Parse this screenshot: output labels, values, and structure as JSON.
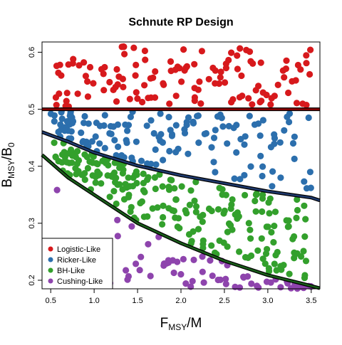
{
  "chart_data": {
    "type": "scatter",
    "title": "Schnute RP Design",
    "xlabel": {
      "main": "F",
      "sub": "MSY",
      "tail": "/M"
    },
    "ylabel": {
      "main": "B",
      "sub": "MSY",
      "tail": "/B",
      "tail_sub": "0"
    },
    "xlim": [
      0.4,
      3.6
    ],
    "ylim": [
      0.185,
      0.618
    ],
    "x_ticks": [
      0.5,
      1.0,
      1.5,
      2.0,
      2.5,
      3.0,
      3.5
    ],
    "x_tick_labels": [
      "0.5",
      "1.0",
      "1.5",
      "2.0",
      "2.5",
      "3.0",
      "3.5"
    ],
    "y_ticks": [
      0.2,
      0.3,
      0.4,
      0.5,
      0.6
    ],
    "y_tick_labels": [
      "0.2",
      "0.3",
      "0.4",
      "0.5",
      "0.6"
    ],
    "grid": false,
    "legend_placement": "bottom-left",
    "boundaries": [
      {
        "kind": "logistic-ricker",
        "type": "constant",
        "value": 0.5,
        "color": "#8b0000"
      },
      {
        "kind": "ricker-bh",
        "type": "curve",
        "color": "#1f3a6e",
        "points": [
          [
            0.4,
            0.46
          ],
          [
            0.7,
            0.443
          ],
          [
            1.0,
            0.424
          ],
          [
            1.5,
            0.401
          ],
          [
            2.0,
            0.384
          ],
          [
            2.5,
            0.37
          ],
          [
            3.0,
            0.356
          ],
          [
            3.5,
            0.345
          ],
          [
            3.6,
            0.34
          ]
        ]
      },
      {
        "kind": "bh-cushing",
        "type": "curve",
        "color": "#1a5e1a",
        "points": [
          [
            0.4,
            0.42
          ],
          [
            0.7,
            0.38
          ],
          [
            1.0,
            0.35
          ],
          [
            1.5,
            0.3
          ],
          [
            2.0,
            0.265
          ],
          [
            2.5,
            0.234
          ],
          [
            3.0,
            0.209
          ],
          [
            3.4,
            0.194
          ],
          [
            3.6,
            0.186
          ]
        ]
      }
    ],
    "series": [
      {
        "name": "Logistic-Like",
        "color": "#d7191c",
        "ymin": 0.5,
        "ymax": 0.615,
        "count": 130,
        "seed": 11
      },
      {
        "name": "Ricker-Like",
        "color": "#2c6fad",
        "ymin_curve": 1,
        "ymax": 0.5,
        "count": 150,
        "seed": 23
      },
      {
        "name": "BH-Like",
        "color": "#33a02c",
        "ymin_curve": 2,
        "ymax_curve": 1,
        "count": 230,
        "seed": 37
      },
      {
        "name": "Cushing-Like",
        "color": "#8e44ad",
        "ymin": 0.185,
        "ymax_curve": 2,
        "count": 70,
        "seed": 51
      }
    ]
  }
}
